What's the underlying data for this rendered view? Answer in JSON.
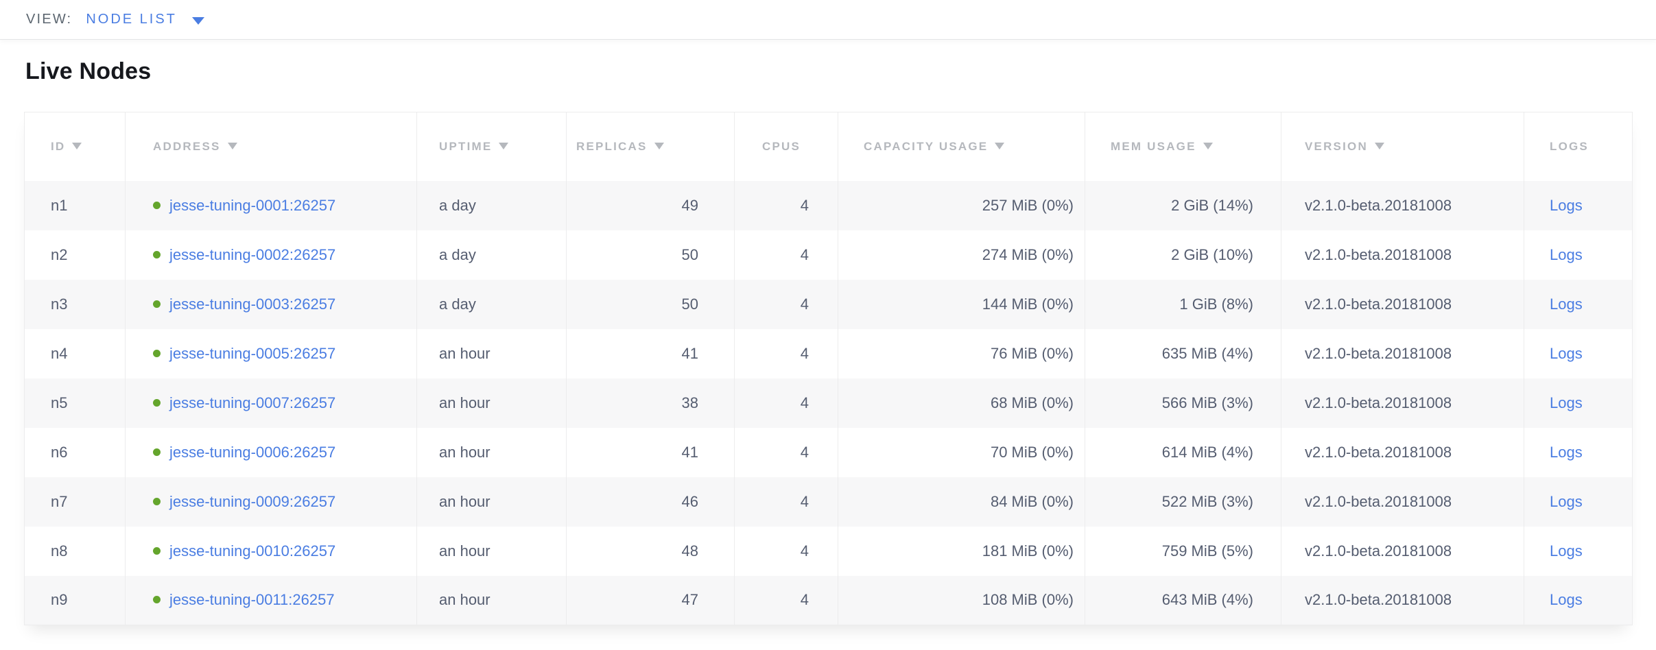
{
  "view_bar": {
    "label": "VIEW:",
    "selected_view": "NODE LIST"
  },
  "page": {
    "title": "Live Nodes"
  },
  "colors": {
    "accent_blue": "#4a7de2",
    "live_green": "#64a52c",
    "header_gray": "#b5b8bd",
    "cell_text": "#555d70",
    "stripe": "#f7f7f8"
  },
  "table": {
    "columns": [
      {
        "key": "id",
        "label": "ID",
        "sortable": true
      },
      {
        "key": "address",
        "label": "ADDRESS",
        "sortable": true
      },
      {
        "key": "uptime",
        "label": "UPTIME",
        "sortable": true
      },
      {
        "key": "replicas",
        "label": "REPLICAS",
        "sortable": true
      },
      {
        "key": "cpus",
        "label": "CPUS",
        "sortable": false
      },
      {
        "key": "capacity",
        "label": "CAPACITY USAGE",
        "sortable": true
      },
      {
        "key": "mem",
        "label": "MEM USAGE",
        "sortable": true
      },
      {
        "key": "version",
        "label": "VERSION",
        "sortable": true
      },
      {
        "key": "logs",
        "label": "LOGS",
        "sortable": false
      }
    ],
    "rows": [
      {
        "id": "n1",
        "address": "jesse-tuning-0001:26257",
        "uptime": "a day",
        "replicas": "49",
        "cpus": "4",
        "capacity": "257 MiB (0%)",
        "mem": "2 GiB (14%)",
        "version": "v2.1.0-beta.20181008",
        "logs": "Logs",
        "status": "live"
      },
      {
        "id": "n2",
        "address": "jesse-tuning-0002:26257",
        "uptime": "a day",
        "replicas": "50",
        "cpus": "4",
        "capacity": "274 MiB (0%)",
        "mem": "2 GiB (10%)",
        "version": "v2.1.0-beta.20181008",
        "logs": "Logs",
        "status": "live"
      },
      {
        "id": "n3",
        "address": "jesse-tuning-0003:26257",
        "uptime": "a day",
        "replicas": "50",
        "cpus": "4",
        "capacity": "144 MiB (0%)",
        "mem": "1 GiB (8%)",
        "version": "v2.1.0-beta.20181008",
        "logs": "Logs",
        "status": "live"
      },
      {
        "id": "n4",
        "address": "jesse-tuning-0005:26257",
        "uptime": "an hour",
        "replicas": "41",
        "cpus": "4",
        "capacity": "76 MiB (0%)",
        "mem": "635 MiB (4%)",
        "version": "v2.1.0-beta.20181008",
        "logs": "Logs",
        "status": "live"
      },
      {
        "id": "n5",
        "address": "jesse-tuning-0007:26257",
        "uptime": "an hour",
        "replicas": "38",
        "cpus": "4",
        "capacity": "68 MiB (0%)",
        "mem": "566 MiB (3%)",
        "version": "v2.1.0-beta.20181008",
        "logs": "Logs",
        "status": "live"
      },
      {
        "id": "n6",
        "address": "jesse-tuning-0006:26257",
        "uptime": "an hour",
        "replicas": "41",
        "cpus": "4",
        "capacity": "70 MiB (0%)",
        "mem": "614 MiB (4%)",
        "version": "v2.1.0-beta.20181008",
        "logs": "Logs",
        "status": "live"
      },
      {
        "id": "n7",
        "address": "jesse-tuning-0009:26257",
        "uptime": "an hour",
        "replicas": "46",
        "cpus": "4",
        "capacity": "84 MiB (0%)",
        "mem": "522 MiB (3%)",
        "version": "v2.1.0-beta.20181008",
        "logs": "Logs",
        "status": "live"
      },
      {
        "id": "n8",
        "address": "jesse-tuning-0010:26257",
        "uptime": "an hour",
        "replicas": "48",
        "cpus": "4",
        "capacity": "181 MiB (0%)",
        "mem": "759 MiB (5%)",
        "version": "v2.1.0-beta.20181008",
        "logs": "Logs",
        "status": "live"
      },
      {
        "id": "n9",
        "address": "jesse-tuning-0011:26257",
        "uptime": "an hour",
        "replicas": "47",
        "cpus": "4",
        "capacity": "108 MiB (0%)",
        "mem": "643 MiB (4%)",
        "version": "v2.1.0-beta.20181008",
        "logs": "Logs",
        "status": "live"
      }
    ]
  }
}
